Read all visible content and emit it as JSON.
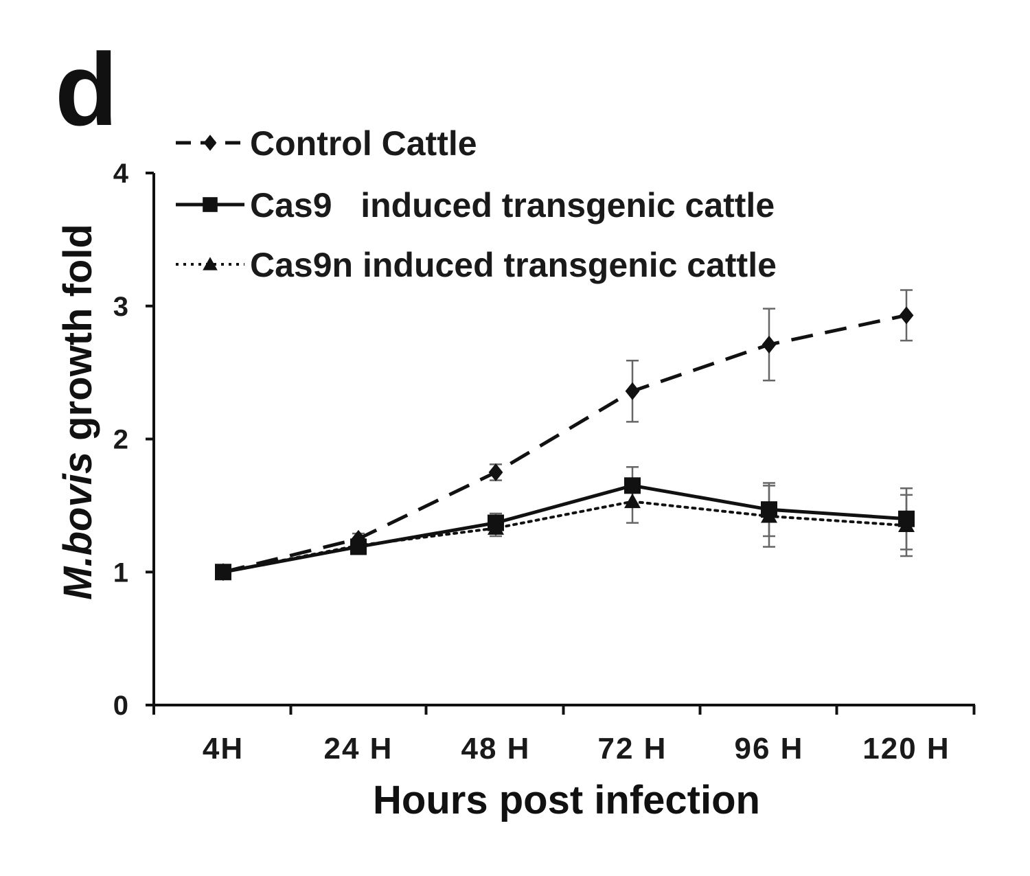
{
  "panel_label": "d",
  "chart_data": {
    "type": "line",
    "title": "",
    "xlabel": "Hours post infection",
    "ylabel_italic": "M.bovis",
    "ylabel_rest": " growth fold",
    "categories": [
      "4H",
      "24 H",
      "48 H",
      "72 H",
      "96 H",
      "120 H"
    ],
    "ylim": [
      0,
      4
    ],
    "yticks": [
      "0",
      "1",
      "2",
      "3",
      "4"
    ],
    "grid": false,
    "legend_position": "top-left",
    "series": [
      {
        "name": "Control Cattle",
        "style": "dashed",
        "marker": "diamond",
        "values": [
          1.0,
          1.25,
          1.75,
          2.36,
          2.71,
          2.93
        ],
        "errors": [
          0.02,
          0.04,
          0.06,
          0.23,
          0.27,
          0.19
        ]
      },
      {
        "name": "Cas9   induced transgenic cattle",
        "style": "solid",
        "marker": "square",
        "values": [
          1.0,
          1.19,
          1.37,
          1.65,
          1.47,
          1.4
        ],
        "errors": [
          0.02,
          0.04,
          0.07,
          0.14,
          0.2,
          0.23
        ]
      },
      {
        "name": "Cas9n induced transgenic cattle",
        "style": "dotted",
        "marker": "triangle",
        "values": [
          1.0,
          1.2,
          1.33,
          1.53,
          1.42,
          1.35
        ],
        "errors": [
          0.02,
          0.04,
          0.06,
          0.16,
          0.23,
          0.23
        ]
      }
    ]
  },
  "colors": {
    "axis": "#111111",
    "line": "#111111",
    "errorbar": "#666666"
  }
}
